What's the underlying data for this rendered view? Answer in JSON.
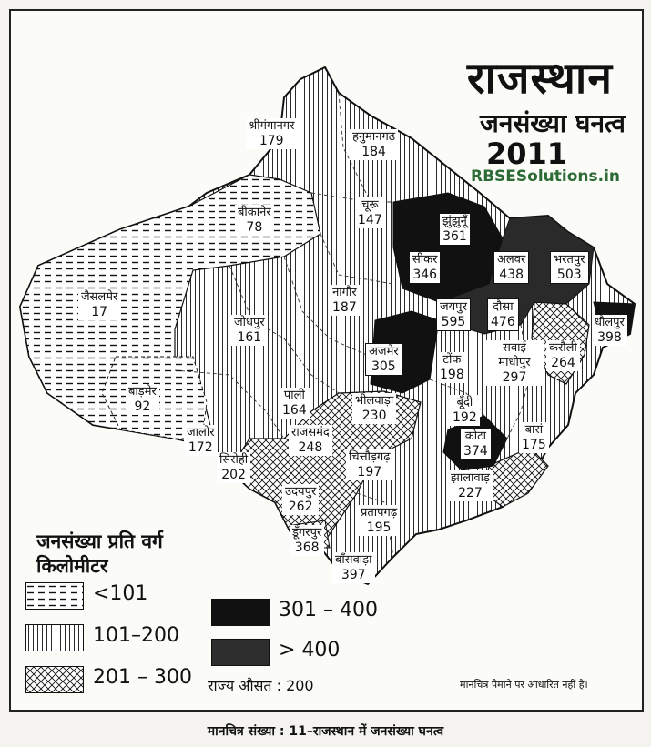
{
  "title": "राजस्थान",
  "subtitle": "जनसंख्या घनत्व",
  "year": "2011",
  "watermark": "RBSESolutions.in",
  "legend": {
    "title": "जनसंख्या प्रति वर्ग किलोमीटर",
    "items": [
      {
        "label": "<101",
        "pattern": "dash"
      },
      {
        "label": "101–200",
        "pattern": "vertical"
      },
      {
        "label": "201 – 300",
        "pattern": "cross"
      },
      {
        "label": "301 – 400",
        "pattern": "black"
      },
      {
        "label": "> 400",
        "pattern": "dark"
      }
    ]
  },
  "state_average": "राज्य औसत : 200",
  "note": "मानचित्र पैमाने पर आधारित नहीं है।",
  "caption": "मानचित्र संख्या : 11–राजस्थान में जनसंख्या घनत्व",
  "districts": [
    {
      "name": "श्रीगंगानगर",
      "density": "179"
    },
    {
      "name": "हनुमानगढ़",
      "density": "184"
    },
    {
      "name": "बीकानेर",
      "density": "78"
    },
    {
      "name": "चूरू",
      "density": "147"
    },
    {
      "name": "झुंझुनूँ",
      "density": "361"
    },
    {
      "name": "सीकर",
      "density": "346"
    },
    {
      "name": "अलवर",
      "density": "438"
    },
    {
      "name": "भरतपुर",
      "density": "503"
    },
    {
      "name": "जैसलमेर",
      "density": "17"
    },
    {
      "name": "नागौर",
      "density": "187"
    },
    {
      "name": "जयपुर",
      "density": "595"
    },
    {
      "name": "दौसा",
      "density": "476"
    },
    {
      "name": "धौलपुर",
      "density": "398"
    },
    {
      "name": "जोधपुर",
      "density": "161"
    },
    {
      "name": "अजमेर",
      "density": "305"
    },
    {
      "name": "टोंक",
      "density": "198"
    },
    {
      "name": "सवाई माधोपुर",
      "density": "297"
    },
    {
      "name": "करौली",
      "density": "264"
    },
    {
      "name": "बाड़मेर",
      "density": "92"
    },
    {
      "name": "पाली",
      "density": "164"
    },
    {
      "name": "भीलवाड़ा",
      "density": "230"
    },
    {
      "name": "बूँदी",
      "density": "192"
    },
    {
      "name": "जालोर",
      "density": "172"
    },
    {
      "name": "राजसमंद",
      "density": "248"
    },
    {
      "name": "कोटा",
      "density": "374"
    },
    {
      "name": "बारां",
      "density": "175"
    },
    {
      "name": "सिरोही",
      "density": "202"
    },
    {
      "name": "चित्तौड़गढ़",
      "density": "197"
    },
    {
      "name": "झालावाड़",
      "density": "227"
    },
    {
      "name": "उदयपुर",
      "density": "262"
    },
    {
      "name": "प्रतापगढ़",
      "density": "195"
    },
    {
      "name": "डूँगरपुर",
      "density": "368"
    },
    {
      "name": "बाँसवाड़ा",
      "density": "397"
    }
  ]
}
